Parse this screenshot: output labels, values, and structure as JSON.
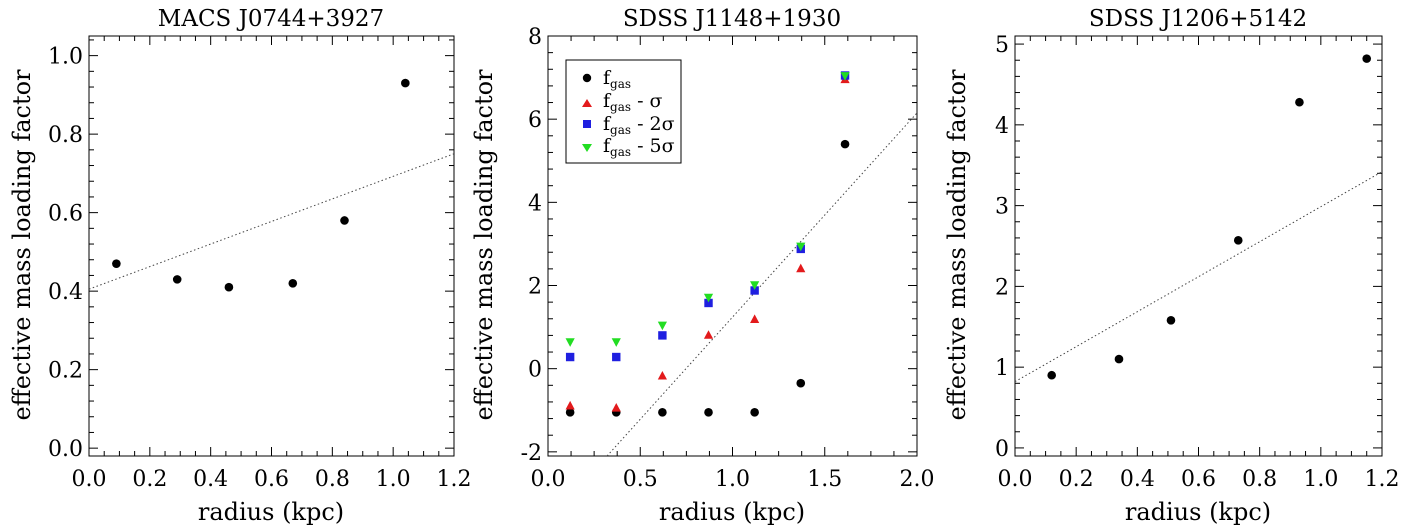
{
  "chart_data": [
    {
      "type": "scatter",
      "title": "MACS J0744+3927",
      "xlabel": "radius (kpc)",
      "ylabel": "effective mass loading factor",
      "xlim": [
        0.0,
        1.2
      ],
      "ylim": [
        -0.02,
        1.05
      ],
      "xticks": [
        "0.0",
        "0.2",
        "0.4",
        "0.6",
        "0.8",
        "1.0",
        "1.2"
      ],
      "xtick_values": [
        0.0,
        0.2,
        0.4,
        0.6,
        0.8,
        1.0,
        1.2
      ],
      "yticks": [
        "0.0",
        "0.2",
        "0.4",
        "0.6",
        "0.8",
        "1.0"
      ],
      "ytick_values": [
        0.0,
        0.2,
        0.4,
        0.6,
        0.8,
        1.0
      ],
      "fit_line": {
        "x": [
          0.0,
          1.2
        ],
        "y": [
          0.405,
          0.75
        ]
      },
      "series": [
        {
          "name": "fgas",
          "marker": "circle",
          "color": "#000000",
          "x": [
            0.09,
            0.29,
            0.46,
            0.67,
            0.84,
            1.04
          ],
          "y": [
            0.47,
            0.43,
            0.41,
            0.42,
            0.58,
            0.93
          ]
        }
      ]
    },
    {
      "type": "scatter",
      "title": "SDSS J1148+1930",
      "xlabel": "radius (kpc)",
      "ylabel": "effective mass loading factor",
      "xlim": [
        0.0,
        2.0
      ],
      "ylim": [
        -2.1,
        8.0
      ],
      "xticks": [
        "0.0",
        "0.5",
        "1.0",
        "1.5",
        "2.0"
      ],
      "xtick_values": [
        0.0,
        0.5,
        1.0,
        1.5,
        2.0
      ],
      "yticks": [
        "-2",
        "0",
        "2",
        "4",
        "6",
        "8"
      ],
      "ytick_values": [
        -2,
        0,
        2,
        4,
        6,
        8
      ],
      "fit_line": {
        "x": [
          0.32,
          2.0
        ],
        "y": [
          -2.1,
          6.15
        ]
      },
      "legend": {
        "position": "top-left",
        "entries": [
          {
            "base": "f",
            "sub": "gas",
            "suffix": "",
            "marker": "circle",
            "color": "#000000"
          },
          {
            "base": "f",
            "sub": "gas",
            "suffix": " - σ",
            "marker": "triangle-up",
            "color": "#e31a1c"
          },
          {
            "base": "f",
            "sub": "gas",
            "suffix": " - 2σ",
            "marker": "square",
            "color": "#1f1fe0"
          },
          {
            "base": "f",
            "sub": "gas",
            "suffix": " - 5σ",
            "marker": "triangle-down",
            "color": "#22dd22"
          }
        ]
      },
      "series": [
        {
          "name": "fgas",
          "marker": "circle",
          "color": "#000000",
          "x": [
            0.12,
            0.37,
            0.62,
            0.87,
            1.12,
            1.37,
            1.61
          ],
          "y": [
            -1.05,
            -1.05,
            -1.05,
            -1.05,
            -1.05,
            -0.35,
            5.4
          ]
        },
        {
          "name": "fgas - σ",
          "marker": "triangle-up",
          "color": "#e31a1c",
          "x": [
            0.12,
            0.37,
            0.62,
            0.87,
            1.12,
            1.37,
            1.61
          ],
          "y": [
            -0.9,
            -0.95,
            -0.18,
            0.8,
            1.18,
            2.4,
            6.95
          ]
        },
        {
          "name": "fgas - 2σ",
          "marker": "square",
          "color": "#1f1fe0",
          "x": [
            0.12,
            0.37,
            0.62,
            0.87,
            1.12,
            1.37,
            1.61
          ],
          "y": [
            0.28,
            0.28,
            0.8,
            1.58,
            1.88,
            2.88,
            7.05
          ]
        },
        {
          "name": "fgas - 5σ",
          "marker": "triangle-down",
          "color": "#22dd22",
          "x": [
            0.12,
            0.37,
            0.62,
            0.87,
            1.12,
            1.37,
            1.61
          ],
          "y": [
            0.65,
            0.65,
            1.05,
            1.72,
            2.02,
            2.95,
            7.05
          ]
        }
      ]
    },
    {
      "type": "scatter",
      "title": "SDSS J1206+5142",
      "xlabel": "radius (kpc)",
      "ylabel": "effective mass loading factor",
      "xlim": [
        0.0,
        1.2
      ],
      "ylim": [
        -0.1,
        5.1
      ],
      "xticks": [
        "0.0",
        "0.2",
        "0.4",
        "0.6",
        "0.8",
        "1.0",
        "1.2"
      ],
      "xtick_values": [
        0.0,
        0.2,
        0.4,
        0.6,
        0.8,
        1.0,
        1.2
      ],
      "yticks": [
        "0",
        "1",
        "2",
        "3",
        "4",
        "5"
      ],
      "ytick_values": [
        0,
        1,
        2,
        3,
        4,
        5
      ],
      "fit_line": {
        "x": [
          0.0,
          1.2
        ],
        "y": [
          0.82,
          3.42
        ]
      },
      "series": [
        {
          "name": "fgas",
          "marker": "circle",
          "color": "#000000",
          "x": [
            0.12,
            0.34,
            0.51,
            0.73,
            0.93,
            1.15
          ],
          "y": [
            0.9,
            1.1,
            1.58,
            2.57,
            4.28,
            4.82
          ]
        }
      ]
    }
  ]
}
